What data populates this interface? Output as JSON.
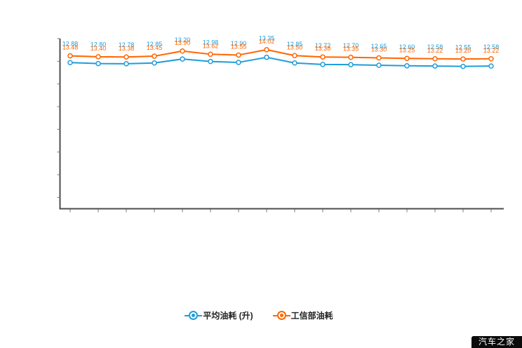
{
  "chart_data": {
    "type": "line",
    "title": "",
    "xlabel": "",
    "ylabel": "",
    "ylim": [
      0,
      15
    ],
    "grid": false,
    "legend_position": "bottom",
    "point_count": 16,
    "label_decimals": 2,
    "series": [
      {
        "name": "平均油耗 (升)",
        "color": "#1e9ddb",
        "values": [
          12.88,
          12.8,
          12.78,
          12.85,
          13.2,
          12.98,
          12.9,
          13.35,
          12.85,
          12.72,
          12.7,
          12.65,
          12.6,
          12.58,
          12.55,
          12.58
        ]
      },
      {
        "name": "工信部油耗",
        "color": "#ff6600",
        "values": [
          13.48,
          13.4,
          13.38,
          13.45,
          13.9,
          13.62,
          13.55,
          14.02,
          13.5,
          13.38,
          13.35,
          13.3,
          13.25,
          13.22,
          13.2,
          13.22
        ]
      }
    ]
  },
  "watermark": {
    "text": "汽车之家"
  }
}
